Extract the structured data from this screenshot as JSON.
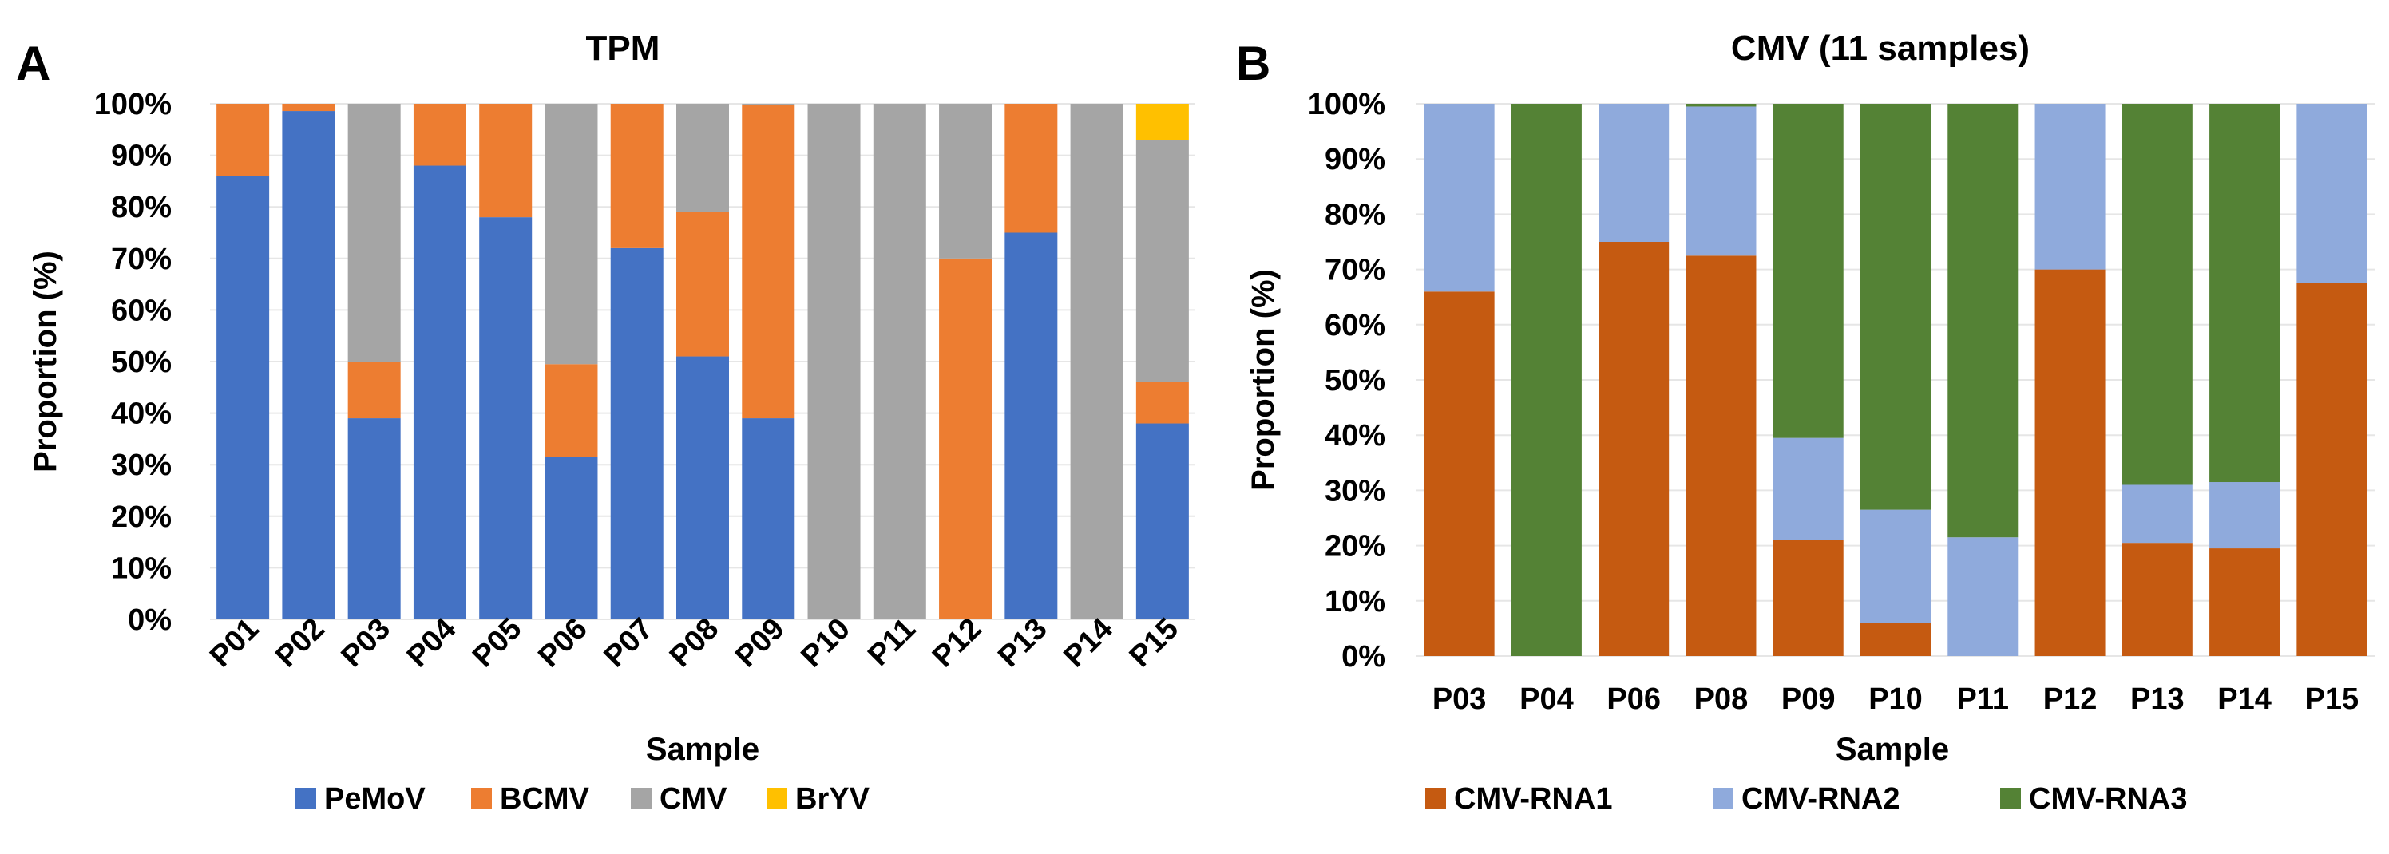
{
  "chart_data": [
    {
      "panel_label": "A",
      "type": "bar",
      "stacked": "percent",
      "title": "TPM",
      "xlabel": "Sample",
      "ylabel": "Proportion (%)",
      "ylim": [
        0,
        100
      ],
      "yticks": [
        "0%",
        "10%",
        "20%",
        "30%",
        "40%",
        "50%",
        "60%",
        "70%",
        "80%",
        "90%",
        "100%"
      ],
      "grid": "horizontal",
      "legend_position": "bottom",
      "x_tick_rotation": "diagonal",
      "categories": [
        "P01",
        "P02",
        "P03",
        "P04",
        "P05",
        "P06",
        "P07",
        "P08",
        "P09",
        "P10",
        "P11",
        "P12",
        "P13",
        "P14",
        "P15"
      ],
      "series": [
        {
          "name": "PeMoV",
          "color": "#4472C4",
          "values": [
            86,
            98.6,
            39,
            88,
            78,
            31.5,
            72,
            51,
            39,
            0,
            0,
            0,
            75,
            0,
            38
          ]
        },
        {
          "name": "BCMV",
          "color": "#ED7D31",
          "values": [
            14,
            1.4,
            11,
            12,
            22,
            18,
            28,
            28,
            60.8,
            0,
            0,
            70,
            25,
            0,
            8
          ]
        },
        {
          "name": "CMV",
          "color": "#A5A5A5",
          "values": [
            0,
            0,
            50,
            0,
            0,
            50.5,
            0,
            21,
            0.2,
            100,
            100,
            30,
            0,
            100,
            47
          ]
        },
        {
          "name": "BrYV",
          "color": "#FFC000",
          "values": [
            0,
            0,
            0,
            0,
            0,
            0,
            0,
            0,
            0,
            0,
            0,
            0,
            0,
            0,
            7
          ]
        }
      ]
    },
    {
      "panel_label": "B",
      "type": "bar",
      "stacked": "percent",
      "title": "CMV (11 samples)",
      "xlabel": "Sample",
      "ylabel": "Proportion (%)",
      "ylim": [
        0,
        100
      ],
      "yticks": [
        "0%",
        "10%",
        "20%",
        "30%",
        "40%",
        "50%",
        "60%",
        "70%",
        "80%",
        "90%",
        "100%"
      ],
      "grid": "horizontal",
      "legend_position": "bottom",
      "x_tick_rotation": "none",
      "categories": [
        "P03",
        "P04",
        "P06",
        "P08",
        "P09",
        "P10",
        "P11",
        "P12",
        "P13",
        "P14",
        "P15"
      ],
      "series": [
        {
          "name": "CMV-RNA1",
          "color": "#C55A11",
          "values": [
            66,
            0,
            75,
            72.5,
            21,
            6,
            0,
            70,
            20.5,
            19.5,
            67.5
          ]
        },
        {
          "name": "CMV-RNA2",
          "color": "#8FAADC",
          "values": [
            34,
            0,
            25,
            27,
            18.5,
            20.5,
            21.5,
            30,
            10.5,
            12,
            32.5
          ]
        },
        {
          "name": "CMV-RNA3",
          "color": "#548235",
          "values": [
            0,
            100,
            0,
            0.5,
            60.5,
            73.5,
            78.5,
            0,
            69,
            68.5,
            0
          ]
        }
      ]
    }
  ]
}
